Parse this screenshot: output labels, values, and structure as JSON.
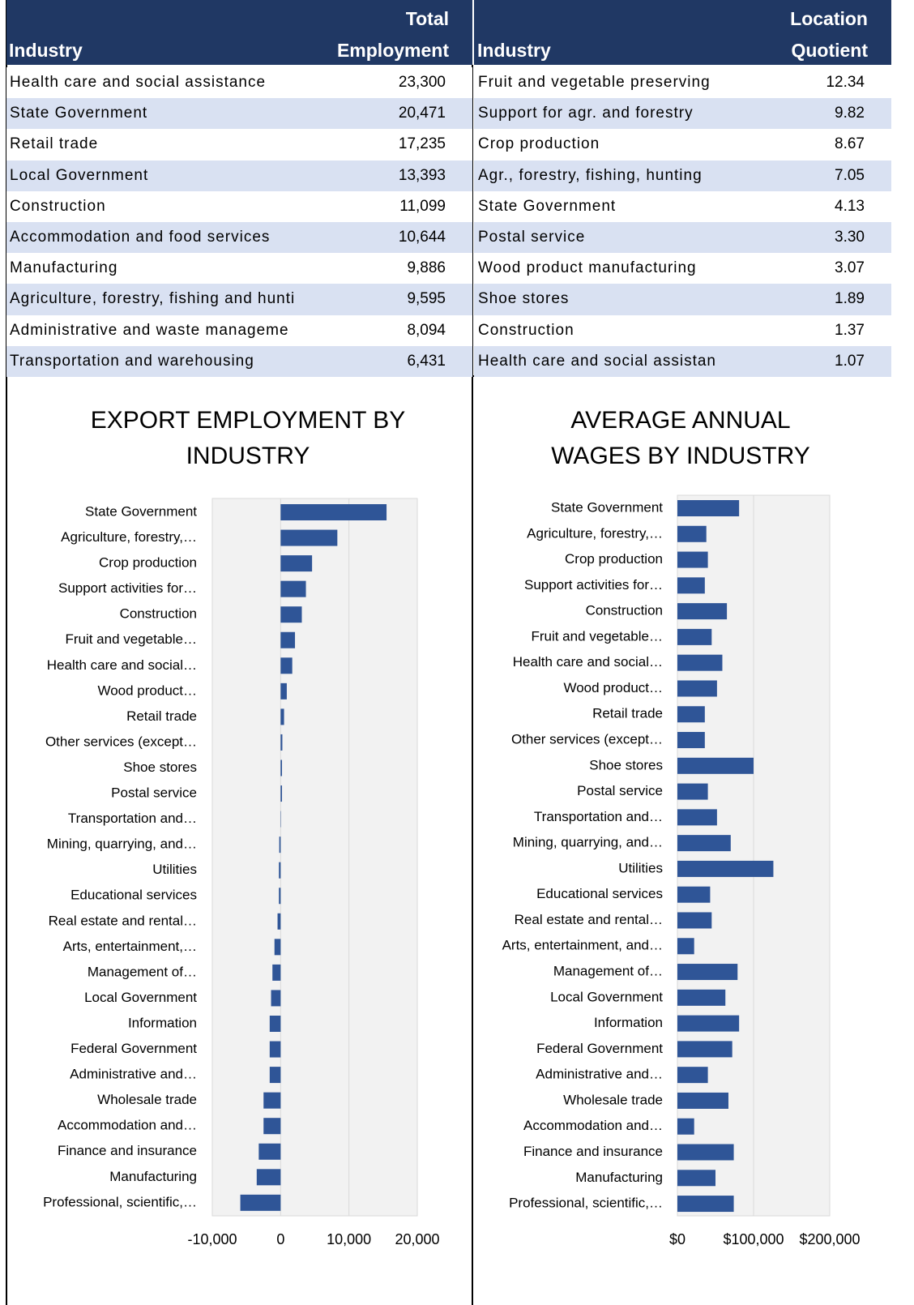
{
  "tables": [
    {
      "columns": [
        "Industry",
        "Total Employment"
      ],
      "rows": [
        [
          "Health care and social assistance",
          "23,300"
        ],
        [
          "State Government",
          "20,471"
        ],
        [
          "Retail trade",
          "17,235"
        ],
        [
          "Local Government",
          "13,393"
        ],
        [
          "Construction",
          "11,099"
        ],
        [
          "Accommodation and food services",
          "10,644"
        ],
        [
          "Manufacturing",
          "9,886"
        ],
        [
          "Agriculture, forestry, fishing and hunti",
          "9,595"
        ],
        [
          "Administrative and waste manageme",
          "8,094"
        ],
        [
          "Transportation and warehousing",
          "6,431"
        ]
      ]
    },
    {
      "columns": [
        "Industry",
        "Location Quotient"
      ],
      "rows": [
        [
          "Fruit and vegetable preserving",
          "12.34"
        ],
        [
          "Support for agr. and forestry",
          "9.82"
        ],
        [
          "Crop production",
          "8.67"
        ],
        [
          "Agr., forestry, fishing, hunting",
          "7.05"
        ],
        [
          "State Government",
          "4.13"
        ],
        [
          "Postal service",
          "3.30"
        ],
        [
          "Wood product manufacturing",
          "3.07"
        ],
        [
          "Shoe stores",
          "1.89"
        ],
        [
          "Construction",
          "1.37"
        ],
        [
          "Health care and social assistan",
          "1.07"
        ]
      ]
    }
  ],
  "chart_data": [
    {
      "type": "bar",
      "orientation": "horizontal",
      "title": "EXPORT EMPLOYMENT BY INDUSTRY",
      "categories": [
        "State Government",
        "Agriculture, forestry,…",
        "Crop production",
        "Support activities for…",
        "Construction",
        "Fruit and vegetable…",
        "Health care and social…",
        "Wood product…",
        "Retail trade",
        "Other services (except…",
        "Shoe stores",
        "Postal service",
        "Transportation and…",
        "Mining, quarrying, and…",
        "Utilities",
        "Educational services",
        "Real estate and rental…",
        "Arts, entertainment,…",
        "Management of…",
        "Local Government",
        "Information",
        "Federal Government",
        "Administrative and…",
        "Wholesale trade",
        "Accommodation and…",
        "Finance and insurance",
        "Manufacturing",
        "Professional, scientific,…"
      ],
      "values": [
        15500,
        8300,
        4600,
        3700,
        3100,
        2100,
        1700,
        900,
        500,
        250,
        200,
        200,
        50,
        -200,
        -250,
        -250,
        -450,
        -900,
        -1200,
        -1400,
        -1600,
        -1600,
        -1600,
        -2500,
        -2500,
        -3200,
        -3500,
        -5900
      ],
      "color": "#2f5597",
      "xlim": [
        -10000,
        20000
      ],
      "xticks": [
        {
          "value": -10000,
          "label": "-10,000"
        },
        0,
        {
          "value": 10000,
          "label": "10,000"
        },
        {
          "value": 20000,
          "label": "20,000"
        }
      ],
      "grid": true
    },
    {
      "type": "bar",
      "orientation": "horizontal",
      "title": "AVERAGE ANNUAL WAGES BY INDUSTRY",
      "categories": [
        "State Government",
        "Agriculture, forestry,…",
        "Crop production",
        "Support activities for…",
        "Construction",
        "Fruit and vegetable…",
        "Health care and social…",
        "Wood product…",
        "Retail trade",
        "Other services (except…",
        "Shoe stores",
        "Postal service",
        "Transportation and…",
        "Mining, quarrying, and…",
        "Utilities",
        "Educational services",
        "Real estate and rental…",
        "Arts, entertainment, and…",
        "Management of…",
        "Local Government",
        "Information",
        "Federal Government",
        "Administrative and…",
        "Wholesale trade",
        "Accommodation and…",
        "Finance and insurance",
        "Manufacturing",
        "Professional, scientific,…"
      ],
      "values": [
        81000,
        38000,
        40000,
        36000,
        65000,
        45000,
        59000,
        52000,
        36000,
        36000,
        100000,
        40000,
        52000,
        70000,
        126000,
        43000,
        45000,
        22000,
        79000,
        63000,
        81000,
        72000,
        40000,
        67000,
        22000,
        74000,
        50000,
        74000
      ],
      "color": "#2f5597",
      "xlim": [
        0,
        200000
      ],
      "xticks": [
        {
          "value": 0,
          "label": "$0"
        },
        {
          "value": 100000,
          "label": "$100,000"
        },
        {
          "value": 200000,
          "label": "$200,000"
        }
      ],
      "grid": true
    }
  ]
}
